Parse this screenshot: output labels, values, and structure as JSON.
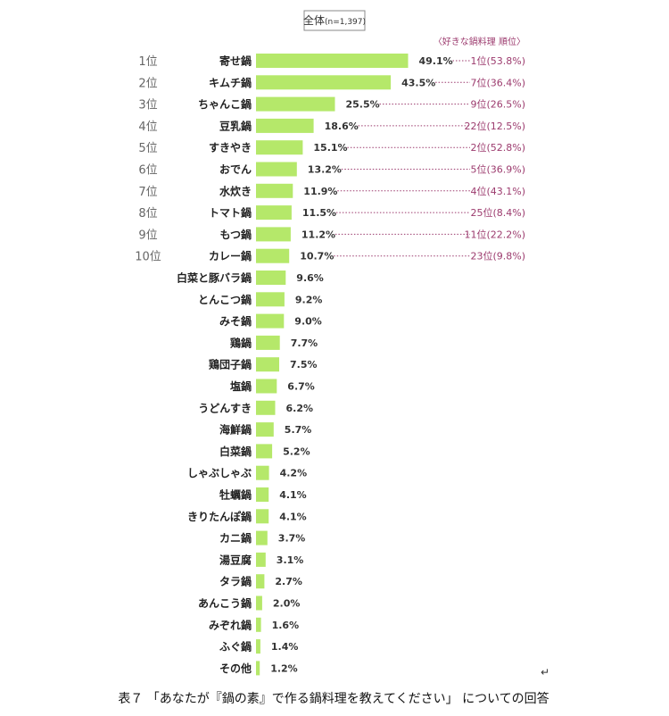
{
  "chart_data": {
    "type": "bar",
    "orientation": "horizontal",
    "group_label": "全体",
    "sample_size": "(n=1,397)",
    "categories": [
      "寄せ鍋",
      "キムチ鍋",
      "ちゃんこ鍋",
      "豆乳鍋",
      "すきやき",
      "おでん",
      "水炊き",
      "トマト鍋",
      "もつ鍋",
      "カレー鍋",
      "白菜と豚バラ鍋",
      "とんこつ鍋",
      "みそ鍋",
      "鶏鍋",
      "鶏団子鍋",
      "塩鍋",
      "うどんすき",
      "海鮮鍋",
      "白菜鍋",
      "しゃぶしゃぶ",
      "牡蠣鍋",
      "きりたんぽ鍋",
      "カニ鍋",
      "湯豆腐",
      "タラ鍋",
      "あんこう鍋",
      "みぞれ鍋",
      "ふぐ鍋",
      "その他"
    ],
    "values": [
      49.1,
      43.5,
      25.5,
      18.6,
      15.1,
      13.2,
      11.9,
      11.5,
      11.2,
      10.7,
      9.6,
      9.2,
      9.0,
      7.7,
      7.5,
      6.7,
      6.2,
      5.7,
      5.2,
      4.2,
      4.1,
      4.1,
      3.7,
      3.1,
      2.7,
      2.0,
      1.6,
      1.4,
      1.2
    ],
    "value_labels": [
      "49.1%",
      "43.5%",
      "25.5%",
      "18.6%",
      "15.1%",
      "13.2%",
      "11.9%",
      "11.5%",
      "11.2%",
      "10.7%",
      "9.6%",
      "9.2%",
      "9.0%",
      "7.7%",
      "7.5%",
      "6.7%",
      "6.2%",
      "5.7%",
      "5.2%",
      "4.2%",
      "4.1%",
      "4.1%",
      "3.7%",
      "3.1%",
      "2.7%",
      "2.0%",
      "1.6%",
      "1.4%",
      "1.2%"
    ],
    "ranks": [
      "1位",
      "2位",
      "3位",
      "4位",
      "5位",
      "6位",
      "7位",
      "8位",
      "9位",
      "10位"
    ],
    "preference_header": "〈好きな鍋料理 順位〉",
    "preference_ranks": [
      "1位(53.8%)",
      "7位(36.4%)",
      "9位(26.5%)",
      "22位(12.5%)",
      "2位(52.8%)",
      "5位(36.9%)",
      "4位(43.1%)",
      "25位(8.4%)",
      "11位(22.2%)",
      "23位(9.8%)"
    ],
    "xlim": [
      0,
      55
    ],
    "bar_color": "#b5e86a",
    "pref_color": "#9c3b6e"
  },
  "caption": "表７ 「あなたが『鍋の素』で作る鍋料理を教えてください」 についての回答",
  "return_mark": "↵"
}
